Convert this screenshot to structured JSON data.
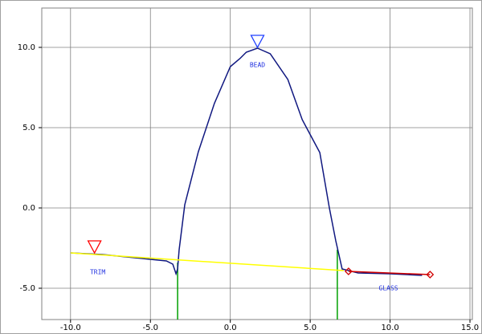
{
  "chart_data": {
    "type": "line",
    "xlim": [
      -11.8,
      15.15
    ],
    "ylim": [
      -6.95,
      12.45
    ],
    "xticks": [
      {
        "value": -10,
        "label": "-10.0"
      },
      {
        "value": -5,
        "label": "-5.0"
      },
      {
        "value": 0,
        "label": "0.0"
      },
      {
        "value": 5,
        "label": "5.0"
      },
      {
        "value": 10,
        "label": "10.0"
      },
      {
        "value": 15,
        "label": "15.0"
      }
    ],
    "yticks": [
      {
        "value": -5,
        "label": "-5.0"
      },
      {
        "value": 0,
        "label": "0.0"
      },
      {
        "value": 5,
        "label": "5.0"
      },
      {
        "value": 10,
        "label": "10.0"
      }
    ],
    "grid": true,
    "series": [
      {
        "color": "#00a000",
        "x": [
          -3.3,
          -3.3,
          null,
          6.7,
          6.7
        ],
        "values": [
          -3.4,
          -6.95,
          null,
          -2.6,
          -6.95
        ]
      },
      {
        "color": "#101880",
        "x": [
          -10,
          -8,
          -6,
          -4,
          -3.6,
          -3.4,
          -3.3,
          -3.2,
          -2.85,
          -2,
          -1,
          0,
          0.6,
          1,
          1.7,
          2.5,
          3.6,
          4.5,
          5.6,
          6.2,
          6.6,
          7,
          8,
          10,
          12
        ],
        "values": [
          -2.8,
          -2.9,
          -3.1,
          -3.3,
          -3.5,
          -4.1,
          -3.8,
          -2.6,
          0.2,
          3.5,
          6.5,
          8.8,
          9.3,
          9.7,
          9.95,
          9.6,
          8,
          5.5,
          3.45,
          0,
          -2.05,
          -3.8,
          -4.05,
          -4.1,
          -4.2
        ]
      },
      {
        "color": "#ffff00",
        "x": [
          -10,
          7.1
        ],
        "values": [
          -2.8,
          -3.9
        ]
      },
      {
        "color": "#d00000",
        "marker": "diamond",
        "x": [
          7.4,
          12.5
        ],
        "values": [
          -3.95,
          -4.15
        ]
      },
      {
        "color": "#ff0000",
        "marker": "triangle",
        "x": [
          -8.5
        ],
        "values": [
          -2.4
        ]
      },
      {
        "color": "#2040ff",
        "marker": "triangle",
        "x": [
          1.7
        ],
        "values": [
          10.4
        ]
      }
    ],
    "annotations": [
      {
        "text": "TRIM",
        "x": -8.3,
        "y": -4,
        "color": "#2030e0"
      },
      {
        "text": "BEAD",
        "x": 1.7,
        "y": 8.9,
        "color": "#2030e0"
      },
      {
        "text": "GLASS",
        "x": 9.9,
        "y": -5,
        "color": "#2030e0"
      }
    ]
  }
}
